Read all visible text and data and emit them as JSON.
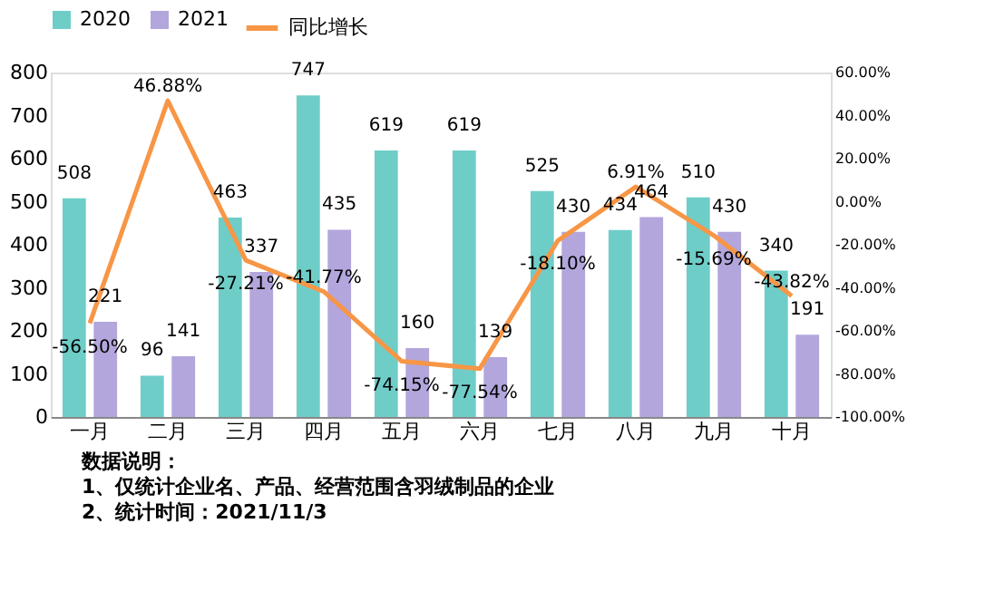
{
  "chart_data": {
    "type": "bar",
    "categories": [
      "一月",
      "二月",
      "三月",
      "四月",
      "五月",
      "六月",
      "七月",
      "八月",
      "九月",
      "十月"
    ],
    "series": [
      {
        "name": "2020",
        "color": "#6fcdc8",
        "values": [
          508,
          96,
          463,
          747,
          619,
          619,
          525,
          434,
          510,
          340
        ]
      },
      {
        "name": "2021",
        "color": "#b3a6dc",
        "values": [
          221,
          141,
          337,
          435,
          160,
          139,
          430,
          464,
          430,
          191
        ]
      },
      {
        "name": "同比增长",
        "type": "line",
        "axis": "y2",
        "color": "#f79646",
        "values": [
          -56.5,
          46.88,
          -27.21,
          -41.77,
          -74.15,
          -77.54,
          -18.1,
          6.91,
          -15.69,
          -43.82
        ],
        "value_labels": [
          "-56.50%",
          "46.88%",
          "-27.21%",
          "-41.77%",
          "-74.15%",
          "-77.54%",
          "-18.10%",
          "6.91%",
          "-15.69%",
          "-43.82%"
        ]
      }
    ],
    "ylim": [
      0,
      800
    ],
    "yticks": [
      0,
      100,
      200,
      300,
      400,
      500,
      600,
      700,
      800
    ],
    "y2lim": [
      -100,
      60
    ],
    "y2ticks": [
      {
        "value": 60,
        "label": "60.00%"
      },
      {
        "value": 40,
        "label": "40.00%"
      },
      {
        "value": 20,
        "label": "20.00%"
      },
      {
        "value": 0,
        "label": "0.00%"
      },
      {
        "value": -20,
        "label": "-20.00%"
      },
      {
        "value": -40,
        "label": "-40.00%"
      },
      {
        "value": -60,
        "label": "-60.00%"
      },
      {
        "value": -80,
        "label": "-80.00%"
      },
      {
        "value": -100,
        "label": "-100.00%"
      }
    ],
    "data_labels": true,
    "grid": false,
    "legend": "top left",
    "annotations": [
      "数据说明：",
      "1、仅统计企业名、产品、经营范围含羽绒制品的企业",
      "2、统计时间：2021/11/3"
    ]
  }
}
